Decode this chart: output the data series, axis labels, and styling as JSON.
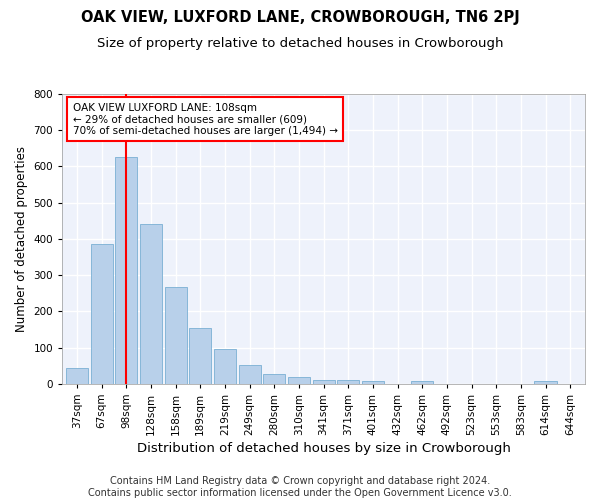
{
  "title": "OAK VIEW, LUXFORD LANE, CROWBOROUGH, TN6 2PJ",
  "subtitle": "Size of property relative to detached houses in Crowborough",
  "xlabel": "Distribution of detached houses by size in Crowborough",
  "ylabel": "Number of detached properties",
  "categories": [
    "37sqm",
    "67sqm",
    "98sqm",
    "128sqm",
    "158sqm",
    "189sqm",
    "219sqm",
    "249sqm",
    "280sqm",
    "310sqm",
    "341sqm",
    "371sqm",
    "401sqm",
    "432sqm",
    "462sqm",
    "492sqm",
    "523sqm",
    "553sqm",
    "583sqm",
    "614sqm",
    "644sqm"
  ],
  "values": [
    45,
    385,
    625,
    440,
    268,
    155,
    95,
    52,
    28,
    18,
    12,
    12,
    8,
    0,
    8,
    0,
    0,
    0,
    0,
    8,
    0
  ],
  "bar_color": "#b8d0ea",
  "bar_edge_color": "#7aafd4",
  "vline_x": 2,
  "vline_color": "red",
  "annotation_text": "OAK VIEW LUXFORD LANE: 108sqm\n← 29% of detached houses are smaller (609)\n70% of semi-detached houses are larger (1,494) →",
  "annotation_box_color": "white",
  "annotation_box_edge_color": "red",
  "footnote": "Contains HM Land Registry data © Crown copyright and database right 2024.\nContains public sector information licensed under the Open Government Licence v3.0.",
  "background_color": "#eef2fb",
  "ylim": [
    0,
    800
  ],
  "yticks": [
    0,
    100,
    200,
    300,
    400,
    500,
    600,
    700,
    800
  ],
  "grid_color": "#ffffff",
  "title_fontsize": 10.5,
  "subtitle_fontsize": 9.5,
  "xlabel_fontsize": 9.5,
  "ylabel_fontsize": 8.5,
  "tick_fontsize": 7.5,
  "footnote_fontsize": 7
}
